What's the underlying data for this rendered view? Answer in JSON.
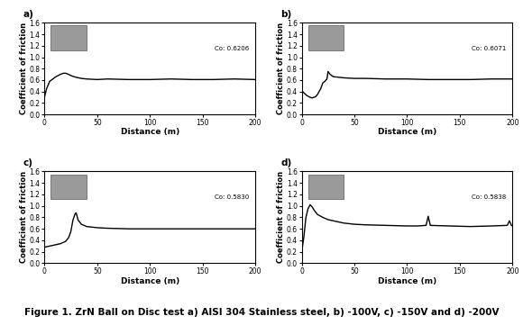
{
  "caption": "Figure 1. ZrN Ball on Disc test a) AISI 304 Stainless steel, b) -100V, c) -150V and d) -200V",
  "chart_data": [
    {
      "type": "line",
      "title": "a)",
      "x_label": "Distance (m)",
      "y_label": "Coefficient of friction",
      "annotations": [
        "Co: 0.6206"
      ],
      "color": "#000000",
      "xlim": [
        0,
        200
      ],
      "xticks": [
        0,
        50,
        100,
        150,
        200
      ],
      "ylim": [
        0.0,
        1.6
      ],
      "yticks": [
        0.0,
        0.2,
        0.4,
        0.6,
        0.8,
        1.0,
        1.2,
        1.4,
        1.6
      ],
      "x": [
        0,
        2,
        5,
        8,
        10,
        13,
        15,
        18,
        20,
        23,
        25,
        28,
        30,
        35,
        40,
        50,
        60,
        80,
        100,
        120,
        140,
        160,
        180,
        200
      ],
      "values": [
        0.3,
        0.45,
        0.58,
        0.62,
        0.65,
        0.68,
        0.7,
        0.72,
        0.72,
        0.7,
        0.68,
        0.66,
        0.65,
        0.63,
        0.62,
        0.61,
        0.62,
        0.61,
        0.61,
        0.62,
        0.61,
        0.61,
        0.62,
        0.61
      ]
    },
    {
      "type": "line",
      "title": "b)",
      "x_label": "Distance (m)",
      "y_label": "Coefficient of friction",
      "annotations": [
        "Co: 0.6071"
      ],
      "color": "#000000",
      "xlim": [
        0,
        200
      ],
      "xticks": [
        0,
        50,
        100,
        150,
        200
      ],
      "ylim": [
        0.0,
        1.6
      ],
      "yticks": [
        0.0,
        0.2,
        0.4,
        0.6,
        0.8,
        1.0,
        1.2,
        1.4,
        1.6
      ],
      "x": [
        0,
        2,
        5,
        8,
        10,
        13,
        15,
        18,
        20,
        22,
        24,
        25,
        27,
        30,
        35,
        40,
        50,
        60,
        80,
        100,
        120,
        140,
        160,
        180,
        200
      ],
      "values": [
        0.42,
        0.38,
        0.33,
        0.3,
        0.29,
        0.31,
        0.35,
        0.45,
        0.55,
        0.58,
        0.62,
        0.75,
        0.7,
        0.66,
        0.65,
        0.64,
        0.63,
        0.63,
        0.62,
        0.62,
        0.61,
        0.61,
        0.61,
        0.62,
        0.62
      ]
    },
    {
      "type": "line",
      "title": "c)",
      "x_label": "Distance (m)",
      "y_label": "Coefficient of friction",
      "annotations": [
        "Co: 0.5830"
      ],
      "color": "#000000",
      "xlim": [
        0,
        200
      ],
      "xticks": [
        0,
        50,
        100,
        150,
        200
      ],
      "ylim": [
        0.0,
        1.6
      ],
      "yticks": [
        0.0,
        0.2,
        0.4,
        0.6,
        0.8,
        1.0,
        1.2,
        1.4,
        1.6
      ],
      "x": [
        0,
        5,
        10,
        15,
        20,
        23,
        25,
        27,
        29,
        30,
        32,
        35,
        40,
        50,
        60,
        80,
        100,
        120,
        140,
        160,
        180,
        200
      ],
      "values": [
        0.28,
        0.3,
        0.32,
        0.34,
        0.38,
        0.45,
        0.55,
        0.75,
        0.86,
        0.88,
        0.75,
        0.68,
        0.64,
        0.62,
        0.61,
        0.6,
        0.6,
        0.6,
        0.6,
        0.6,
        0.6,
        0.6
      ]
    },
    {
      "type": "line",
      "title": "d)",
      "x_label": "Distance (m)",
      "y_label": "Coefficient of friction",
      "annotations": [
        "Co: 0.5838"
      ],
      "color": "#000000",
      "xlim": [
        0,
        200
      ],
      "xticks": [
        0,
        50,
        100,
        150,
        200
      ],
      "ylim": [
        0.0,
        1.6
      ],
      "yticks": [
        0.0,
        0.2,
        0.4,
        0.6,
        0.8,
        1.0,
        1.2,
        1.4,
        1.6
      ],
      "x": [
        0,
        2,
        4,
        6,
        8,
        10,
        12,
        15,
        20,
        25,
        30,
        40,
        50,
        60,
        80,
        100,
        110,
        118,
        120,
        122,
        140,
        160,
        180,
        195,
        197,
        199,
        200
      ],
      "values": [
        0.2,
        0.45,
        0.8,
        0.95,
        1.02,
        0.98,
        0.92,
        0.85,
        0.8,
        0.76,
        0.74,
        0.7,
        0.68,
        0.67,
        0.66,
        0.65,
        0.65,
        0.66,
        0.82,
        0.66,
        0.65,
        0.64,
        0.65,
        0.66,
        0.74,
        0.66,
        0.65
      ]
    }
  ]
}
